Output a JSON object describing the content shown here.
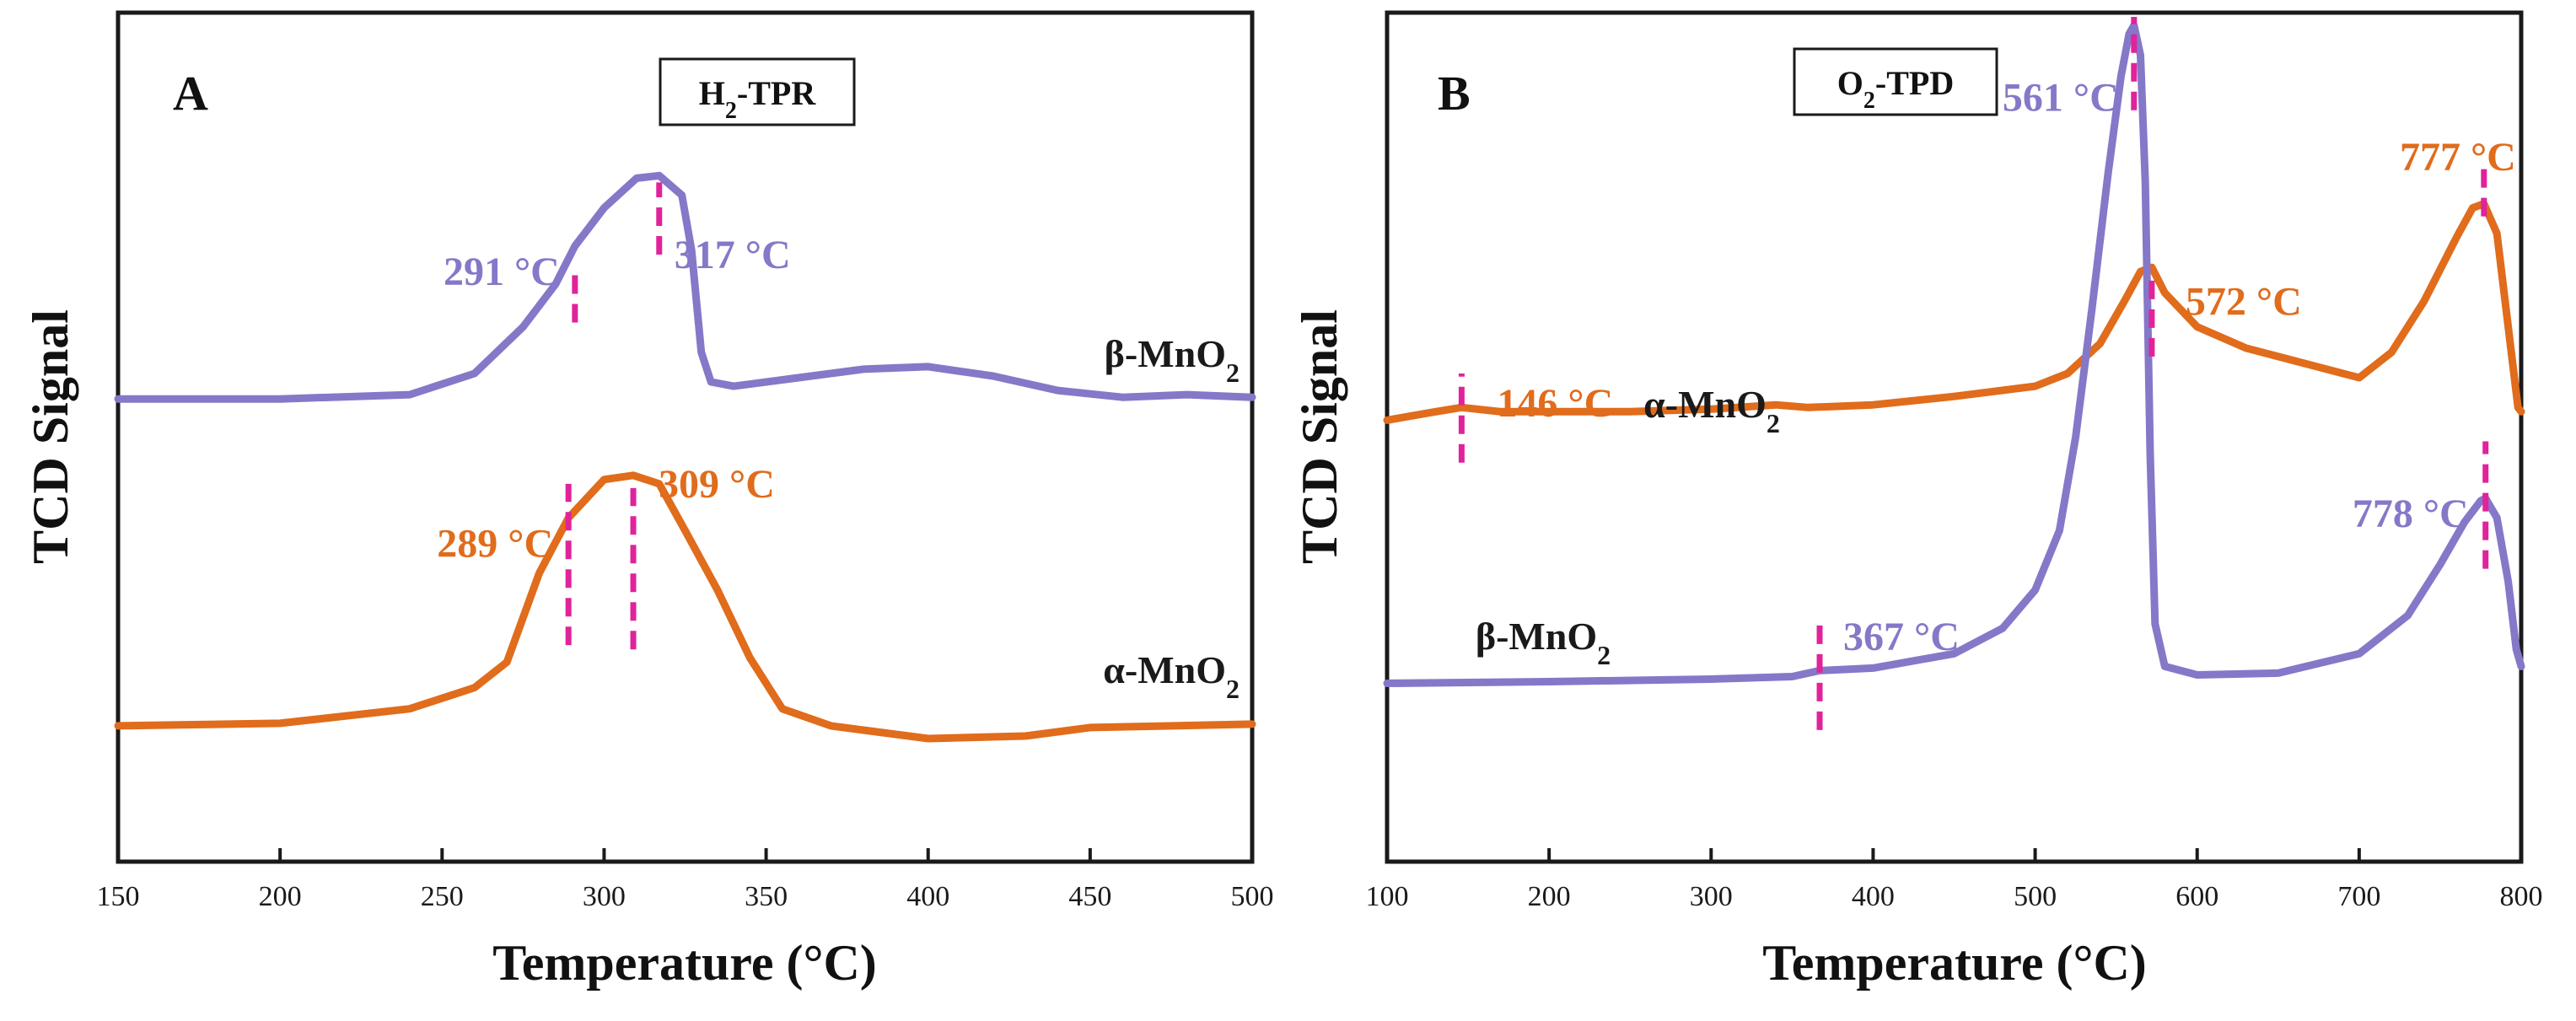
{
  "chart_data": [
    {
      "type": "line",
      "panel": "A",
      "title": "H2-TPR",
      "xlabel": "Temperature (°C)",
      "ylabel": "TCD Signal",
      "xlim": [
        150,
        500
      ],
      "ylim": [
        0,
        10
      ],
      "xticks": [
        150,
        200,
        250,
        300,
        350,
        400,
        450,
        500
      ],
      "series": [
        {
          "name": "β-MnO2",
          "label_main": "β-MnO",
          "label_sub": "2",
          "color": "#8578c8",
          "points": [
            [
              150,
              5.45
            ],
            [
              200,
              5.45
            ],
            [
              240,
              5.5
            ],
            [
              260,
              5.75
            ],
            [
              275,
              6.3
            ],
            [
              285,
              6.8
            ],
            [
              291,
              7.25
            ],
            [
              300,
              7.7
            ],
            [
              310,
              8.05
            ],
            [
              317,
              8.08
            ],
            [
              324,
              7.85
            ],
            [
              327,
              7.2
            ],
            [
              330,
              6.0
            ],
            [
              333,
              5.65
            ],
            [
              340,
              5.6
            ],
            [
              360,
              5.7
            ],
            [
              380,
              5.8
            ],
            [
              400,
              5.83
            ],
            [
              420,
              5.72
            ],
            [
              440,
              5.55
            ],
            [
              460,
              5.47
            ],
            [
              480,
              5.5
            ],
            [
              500,
              5.47
            ]
          ],
          "annotations": [
            {
              "x": 291,
              "text": "291 °C"
            },
            {
              "x": 317,
              "text": "317 °C"
            }
          ]
        },
        {
          "name": "α-MnO2",
          "label_main": "α-MnO",
          "label_sub": "2",
          "color": "#e06c1c",
          "points": [
            [
              150,
              1.6
            ],
            [
              200,
              1.63
            ],
            [
              240,
              1.8
            ],
            [
              260,
              2.05
            ],
            [
              270,
              2.35
            ],
            [
              280,
              3.4
            ],
            [
              289,
              4.05
            ],
            [
              300,
              4.5
            ],
            [
              309,
              4.55
            ],
            [
              317,
              4.45
            ],
            [
              325,
              3.9
            ],
            [
              335,
              3.2
            ],
            [
              345,
              2.4
            ],
            [
              355,
              1.8
            ],
            [
              370,
              1.6
            ],
            [
              400,
              1.45
            ],
            [
              430,
              1.48
            ],
            [
              450,
              1.58
            ],
            [
              500,
              1.62
            ]
          ],
          "annotations": [
            {
              "x": 289,
              "text": "289 °C"
            },
            {
              "x": 309,
              "text": "309 °C"
            }
          ]
        }
      ]
    },
    {
      "type": "line",
      "panel": "B",
      "title": "O2-TPD",
      "xlabel": "Temperature (°C)",
      "ylabel": "TCD Signal",
      "xlim": [
        100,
        800
      ],
      "ylim": [
        0,
        10
      ],
      "xticks": [
        100,
        200,
        300,
        400,
        500,
        600,
        700,
        800
      ],
      "series": [
        {
          "name": "α-MnO2",
          "label_main": "α-MnO",
          "label_sub": "2",
          "color": "#e06c1c",
          "points": [
            [
              100,
              5.2
            ],
            [
              130,
              5.3
            ],
            [
              146,
              5.35
            ],
            [
              170,
              5.3
            ],
            [
              250,
              5.3
            ],
            [
              300,
              5.33
            ],
            [
              340,
              5.38
            ],
            [
              360,
              5.35
            ],
            [
              400,
              5.38
            ],
            [
              450,
              5.48
            ],
            [
              500,
              5.6
            ],
            [
              520,
              5.75
            ],
            [
              540,
              6.1
            ],
            [
              555,
              6.6
            ],
            [
              565,
              6.95
            ],
            [
              572,
              7.0
            ],
            [
              580,
              6.7
            ],
            [
              600,
              6.3
            ],
            [
              630,
              6.05
            ],
            [
              660,
              5.9
            ],
            [
              700,
              5.7
            ],
            [
              720,
              6.0
            ],
            [
              740,
              6.6
            ],
            [
              760,
              7.35
            ],
            [
              770,
              7.7
            ],
            [
              777,
              7.75
            ],
            [
              785,
              7.4
            ],
            [
              792,
              6.3
            ],
            [
              798,
              5.35
            ],
            [
              800,
              5.3
            ]
          ],
          "annotations": [
            {
              "x": 146,
              "text": "146 °C"
            },
            {
              "x": 572,
              "text": "572 °C"
            },
            {
              "x": 777,
              "text": "777 °C"
            }
          ]
        },
        {
          "name": "β-MnO2",
          "label_main": "β-MnO",
          "label_sub": "2",
          "color": "#8578c8",
          "points": [
            [
              100,
              2.1
            ],
            [
              200,
              2.12
            ],
            [
              300,
              2.15
            ],
            [
              350,
              2.18
            ],
            [
              367,
              2.25
            ],
            [
              400,
              2.28
            ],
            [
              450,
              2.45
            ],
            [
              480,
              2.75
            ],
            [
              500,
              3.2
            ],
            [
              515,
              3.9
            ],
            [
              525,
              5.0
            ],
            [
              535,
              6.5
            ],
            [
              545,
              8.1
            ],
            [
              553,
              9.25
            ],
            [
              558,
              9.75
            ],
            [
              561,
              9.85
            ],
            [
              565,
              9.5
            ],
            [
              568,
              8.0
            ],
            [
              571,
              4.8
            ],
            [
              574,
              2.8
            ],
            [
              580,
              2.3
            ],
            [
              600,
              2.2
            ],
            [
              650,
              2.22
            ],
            [
              700,
              2.45
            ],
            [
              730,
              2.9
            ],
            [
              750,
              3.5
            ],
            [
              765,
              4.0
            ],
            [
              775,
              4.25
            ],
            [
              778,
              4.28
            ],
            [
              785,
              4.05
            ],
            [
              792,
              3.3
            ],
            [
              797,
              2.5
            ],
            [
              800,
              2.3
            ]
          ],
          "annotations": [
            {
              "x": 367,
              "text": "367 °C"
            },
            {
              "x": 561,
              "text": "561 °C"
            },
            {
              "x": 778,
              "text": "778 °C"
            }
          ]
        }
      ]
    }
  ],
  "panelA": {
    "letter": "A",
    "title_main": "H",
    "title_sub": "2",
    "title_rest": "-TPR",
    "ylabel": "TCD Signal",
    "xlabel": "Temperature (°C)"
  },
  "panelB": {
    "letter": "B",
    "title_main": "O",
    "title_sub": "2",
    "title_rest": "-TPD",
    "ylabel": "TCD Signal",
    "xlabel": "Temperature (°C)"
  },
  "colors": {
    "beta": "#8578c8",
    "alpha": "#e06c1c",
    "marker": "#e0239a",
    "axis": "#1a1a1a"
  }
}
